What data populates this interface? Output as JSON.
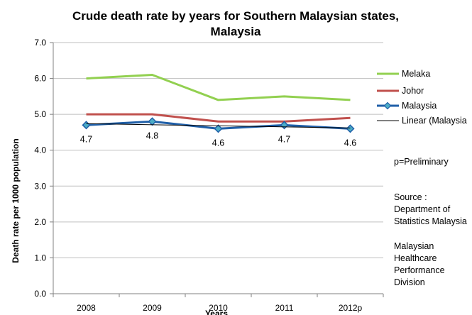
{
  "chart_data": {
    "type": "line",
    "title_lines": [
      "Crude death rate by years for Southern Malaysian states,",
      "Malaysia"
    ],
    "xlabel": "Years",
    "ylabel": "Death rate per 1000 population",
    "categories": [
      "2008",
      "2009",
      "2010",
      "2011",
      "2012p"
    ],
    "ylim": [
      0,
      7
    ],
    "yticks": [
      "0.0",
      "1.0",
      "2.0",
      "3.0",
      "4.0",
      "5.0",
      "6.0",
      "7.0"
    ],
    "grid": true,
    "legend_position": "right",
    "series": [
      {
        "name": "Melaka",
        "values": [
          6.0,
          6.1,
          5.4,
          5.5,
          5.4
        ],
        "color": "#92d050",
        "marker": "none"
      },
      {
        "name": "Johor",
        "values": [
          5.0,
          5.0,
          4.8,
          4.8,
          4.9
        ],
        "color": "#c0504d",
        "marker": "none"
      },
      {
        "name": "Malaysia",
        "values": [
          4.7,
          4.8,
          4.6,
          4.7,
          4.6
        ],
        "color": "#1f5fa8",
        "marker": "diamond",
        "marker_fill": "#4bacc6",
        "data_labels": [
          "4.7",
          "4.8",
          "4.6",
          "4.7",
          "4.6"
        ]
      },
      {
        "name": "Linear (Malaysia)",
        "type": "trendline",
        "trend_of": "Malaysia",
        "color": "#000000"
      }
    ],
    "legend_labels": [
      "Melaka",
      "Johor",
      "Malaysia",
      "Linear (Malaysia"
    ],
    "notes": [
      [
        "p=Preliminary"
      ],
      [
        "Source :",
        "Department of",
        "Statistics Malaysia"
      ],
      [
        "Malaysian",
        "Healthcare",
        "Performance",
        "Division"
      ]
    ]
  }
}
